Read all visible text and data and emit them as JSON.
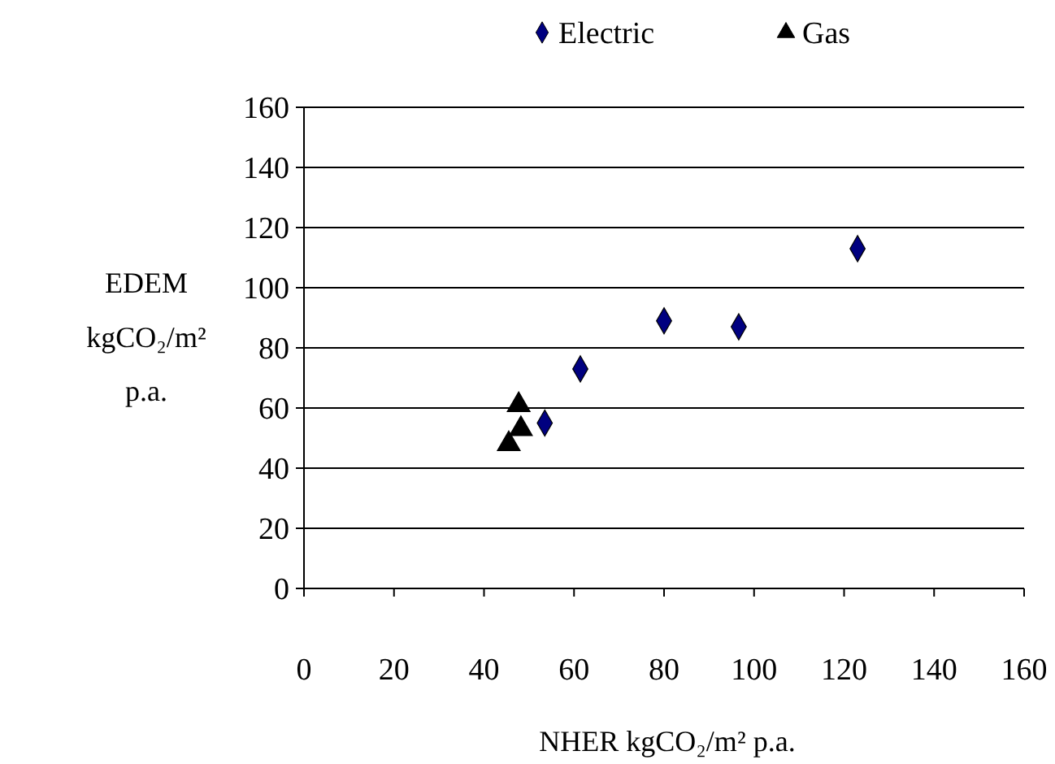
{
  "chart_data": {
    "type": "scatter",
    "xlabel": "NHER kgCO₂/m² p.a.",
    "ylabel": "EDEM kgCO₂/m² p.a.",
    "xlim": [
      0,
      160
    ],
    "xticks": [
      0,
      20,
      40,
      60,
      80,
      100,
      120,
      140,
      160
    ],
    "ylim": [
      0,
      160
    ],
    "yticks": [
      0,
      20,
      40,
      60,
      80,
      100,
      120,
      140,
      160
    ],
    "grid": "y",
    "legend": "top",
    "series": [
      {
        "name": "Electric",
        "color": "#000080",
        "marker": "diamond",
        "x": [
          53.5,
          61.4,
          80,
          96.6,
          123
        ],
        "values": [
          55,
          73,
          89,
          87,
          113
        ]
      },
      {
        "name": "Gas",
        "color": "#000000",
        "marker": "triangle",
        "x": [
          47.7,
          48.2,
          45.5
        ],
        "values": [
          61,
          53,
          48
        ]
      }
    ]
  }
}
